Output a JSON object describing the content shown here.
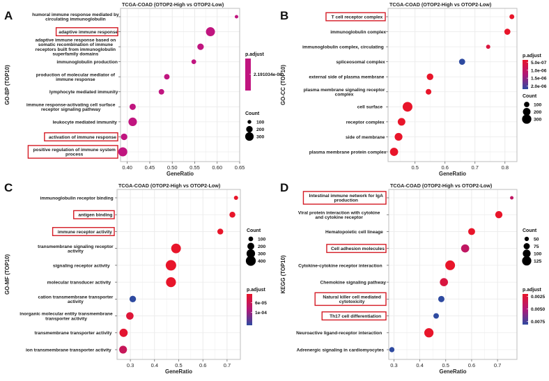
{
  "figure": {
    "subtitle": "TCGA-COAD (OTOP2-High vs OTOP2-Low)"
  },
  "chart_data": [
    {
      "panel": "A",
      "type": "scatter",
      "title": "TCGA-COAD (OTOP2-High vs OTOP2-Low)",
      "xlabel": "GeneRatio",
      "ylabel": "GO-BP (TOP10)",
      "xlim": [
        0.385,
        0.65
      ],
      "xticks": [
        0.4,
        0.45,
        0.5,
        0.55,
        0.6,
        0.65
      ],
      "xtick_labels": [
        "0.40",
        "0.45",
        "0.50",
        "0.55",
        "0.60",
        "0.65"
      ],
      "grid": true,
      "terms": [
        {
          "label": [
            "humoral immune response mediated by",
            "circulating immunoglobulin"
          ],
          "x": 0.643,
          "count": 90,
          "p": 2.19e-08,
          "highlight": false
        },
        {
          "label": [
            "adaptive immune response"
          ],
          "x": 0.585,
          "count": 330,
          "p": 2.19e-08,
          "highlight": true
        },
        {
          "label": [
            "adaptive immune response based on",
            "somatic recombination of immune",
            "receptors built from immunoglobulin",
            "superfamily domains"
          ],
          "x": 0.563,
          "count": 200,
          "p": 2.19e-08,
          "highlight": false
        },
        {
          "label": [
            "immunoglobulin production"
          ],
          "x": 0.548,
          "count": 130,
          "p": 2.19e-08,
          "highlight": false
        },
        {
          "label": [
            "production of molecular mediator of",
            "immune response"
          ],
          "x": 0.488,
          "count": 160,
          "p": 2.19e-08,
          "highlight": false
        },
        {
          "label": [
            "lymphocyte mediated immunity"
          ],
          "x": 0.476,
          "count": 160,
          "p": 2.19e-08,
          "highlight": false
        },
        {
          "label": [
            "immune response-activating cell surface",
            "receptor signaling pathway"
          ],
          "x": 0.412,
          "count": 190,
          "p": 2.19e-08,
          "highlight": false
        },
        {
          "label": [
            "leukocyte mediated immunity"
          ],
          "x": 0.412,
          "count": 300,
          "p": 2.19e-08,
          "highlight": false
        },
        {
          "label": [
            "activation of immune response"
          ],
          "x": 0.393,
          "count": 200,
          "p": 2.19e-08,
          "highlight": true
        },
        {
          "label": [
            "positive regulation of immune system",
            "process"
          ],
          "x": 0.39,
          "count": 330,
          "p": 2.19e-08,
          "highlight": true
        }
      ],
      "color_legend": {
        "title": "p.adjust",
        "labels": [
          "2.191034e-08"
        ],
        "colors": [
          "#c0157f",
          "#c0157f"
        ]
      },
      "size_legend": {
        "title": "Count",
        "values": [
          100,
          200,
          300
        ],
        "labels": [
          "100",
          "200",
          "300"
        ]
      }
    },
    {
      "panel": "B",
      "type": "scatter",
      "title": "TCGA-COAD (OTOP2-High vs OTOP2-Low)",
      "xlabel": "GeneRatio",
      "ylabel": "GO-CC (TOP10)",
      "xlim": [
        0.41,
        0.84
      ],
      "xticks": [
        0.5,
        0.6,
        0.7,
        0.8
      ],
      "xtick_labels": [
        "0.5",
        "0.6",
        "0.7",
        "0.8"
      ],
      "grid": true,
      "terms": [
        {
          "label": [
            "T cell receptor complex"
          ],
          "x": 0.823,
          "count": 80,
          "p": 4e-07,
          "highlight": true
        },
        {
          "label": [
            "immunoglobulin complex"
          ],
          "x": 0.808,
          "count": 130,
          "p": 4e-07,
          "highlight": false
        },
        {
          "label": [
            "immunoglobulin complex, circulating"
          ],
          "x": 0.744,
          "count": 60,
          "p": 6e-07,
          "highlight": false
        },
        {
          "label": [
            "spliceosomal complex"
          ],
          "x": 0.657,
          "count": 130,
          "p": 2e-06,
          "highlight": false
        },
        {
          "label": [
            "external side of plasma membrane"
          ],
          "x": 0.55,
          "count": 150,
          "p": 4e-07,
          "highlight": false
        },
        {
          "label": [
            "plasma membrane signaling receptor",
            "complex"
          ],
          "x": 0.545,
          "count": 110,
          "p": 4e-07,
          "highlight": false
        },
        {
          "label": [
            "cell surface"
          ],
          "x": 0.475,
          "count": 330,
          "p": 4e-07,
          "highlight": false
        },
        {
          "label": [
            "receptor complex"
          ],
          "x": 0.455,
          "count": 200,
          "p": 4e-07,
          "highlight": false
        },
        {
          "label": [
            "side of membrane"
          ],
          "x": 0.445,
          "count": 210,
          "p": 4e-07,
          "highlight": false
        },
        {
          "label": [
            "plasma membrane protein complex"
          ],
          "x": 0.43,
          "count": 230,
          "p": 4e-07,
          "highlight": false
        }
      ],
      "color_legend": {
        "title": "p.adjust",
        "labels": [
          "5.0e-07",
          "1.0e-06",
          "1.5e-06",
          "2.0e-06"
        ],
        "colors": [
          "#e8152a",
          "#b01878",
          "#2e4aa0"
        ]
      },
      "size_legend": {
        "title": "Count",
        "values": [
          100,
          200,
          300
        ],
        "labels": [
          "100",
          "200",
          "300"
        ]
      }
    },
    {
      "panel": "C",
      "type": "scatter",
      "title": "TCGA-COAD (OTOP2-High vs OTOP2-Low)",
      "xlabel": "GeneRatio",
      "ylabel": "GO-MF (TOP10)",
      "xlim": [
        0.245,
        0.755
      ],
      "xticks": [
        0.3,
        0.4,
        0.5,
        0.6,
        0.7
      ],
      "xtick_labels": [
        "0.3",
        "0.4",
        "0.5",
        "0.6",
        "0.7"
      ],
      "grid": true,
      "terms": [
        {
          "label": [
            "immunoglobulin receptor binding"
          ],
          "x": 0.737,
          "count": 80,
          "p": 2e-05,
          "highlight": false
        },
        {
          "label": [
            "antigen binding"
          ],
          "x": 0.722,
          "count": 150,
          "p": 2e-05,
          "highlight": true
        },
        {
          "label": [
            "immune receptor activity"
          ],
          "x": 0.672,
          "count": 150,
          "p": 2e-05,
          "highlight": true
        },
        {
          "label": [
            "transmembrane signaling receptor",
            "activity"
          ],
          "x": 0.489,
          "count": 380,
          "p": 2e-05,
          "highlight": false
        },
        {
          "label": [
            "signaling receptor activity"
          ],
          "x": 0.468,
          "count": 440,
          "p": 2e-05,
          "highlight": false
        },
        {
          "label": [
            "molecular transducer activity"
          ],
          "x": 0.468,
          "count": 400,
          "p": 2e-05,
          "highlight": false
        },
        {
          "label": [
            "cation transmembrane transporter",
            "activity"
          ],
          "x": 0.31,
          "count": 180,
          "p": 0.000135,
          "highlight": false
        },
        {
          "label": [
            "inorganic molecular entity transmembrane",
            "transporter activity"
          ],
          "x": 0.298,
          "count": 230,
          "p": 3e-05,
          "highlight": false
        },
        {
          "label": [
            "transmembrane transporter activity"
          ],
          "x": 0.272,
          "count": 280,
          "p": 2.5e-05,
          "highlight": false
        },
        {
          "label": [
            "ion transmembrane transporter activity"
          ],
          "x": 0.27,
          "count": 250,
          "p": 5.5e-05,
          "highlight": false
        }
      ],
      "color_legend": {
        "title": "p.adjust",
        "labels": [
          "6e-05",
          "1e-04"
        ],
        "colors": [
          "#e8152a",
          "#b01878",
          "#2e4aa0"
        ]
      },
      "size_legend": {
        "title": "Count",
        "values": [
          100,
          200,
          300,
          400
        ],
        "labels": [
          "100",
          "200",
          "300",
          "400"
        ]
      }
    },
    {
      "panel": "D",
      "type": "scatter",
      "title": "TCGA-COAD (OTOP2-High vs OTOP2-Low)",
      "xlabel": "GeneRatio",
      "ylabel": "KEGG (TOP10)",
      "xlim": [
        0.28,
        0.775
      ],
      "xticks": [
        0.3,
        0.4,
        0.5,
        0.6,
        0.7
      ],
      "xtick_labels": [
        "0.3",
        "0.4",
        "0.5",
        "0.6",
        "0.7"
      ],
      "grid": true,
      "terms": [
        {
          "label": [
            "Intestinal immune network for IgA",
            "production"
          ],
          "x": 0.755,
          "count": 40,
          "p": 0.004,
          "highlight": true
        },
        {
          "label": [
            "Viral protein interaction with cytokine",
            "and cytokine receptor"
          ],
          "x": 0.705,
          "count": 90,
          "p": 0.0015,
          "highlight": false
        },
        {
          "label": [
            "Hematopoietic cell lineage"
          ],
          "x": 0.6,
          "count": 85,
          "p": 0.0015,
          "highlight": false
        },
        {
          "label": [
            "Cell adhesion molecules"
          ],
          "x": 0.575,
          "count": 105,
          "p": 0.004,
          "highlight": true
        },
        {
          "label": [
            "Cytokine-cytokine receptor interaction"
          ],
          "x": 0.517,
          "count": 135,
          "p": 0.0015,
          "highlight": false
        },
        {
          "label": [
            "Chemokine signaling pathway"
          ],
          "x": 0.493,
          "count": 105,
          "p": 0.0025,
          "highlight": false
        },
        {
          "label": [
            "Natural killer cell mediated",
            "cytotoxicity"
          ],
          "x": 0.483,
          "count": 75,
          "p": 0.0085,
          "highlight": true
        },
        {
          "label": [
            "Th17 cell differentiation"
          ],
          "x": 0.463,
          "count": 65,
          "p": 0.0085,
          "highlight": true
        },
        {
          "label": [
            "Neuroactive ligand-receptor interaction"
          ],
          "x": 0.435,
          "count": 125,
          "p": 0.0015,
          "highlight": false
        },
        {
          "label": [
            "Adrenergic signaling in cardiomyocytes"
          ],
          "x": 0.292,
          "count": 60,
          "p": 0.0085,
          "highlight": false
        }
      ],
      "color_legend": {
        "title": "p.adjust",
        "labels": [
          "0.0025",
          "0.0050",
          "0.0075"
        ],
        "colors": [
          "#e8152a",
          "#b01878",
          "#2e4aa0"
        ]
      },
      "size_legend": {
        "title": "Count",
        "values": [
          50,
          75,
          100,
          125
        ],
        "labels": [
          "50",
          "75",
          "100",
          "125"
        ]
      }
    }
  ]
}
